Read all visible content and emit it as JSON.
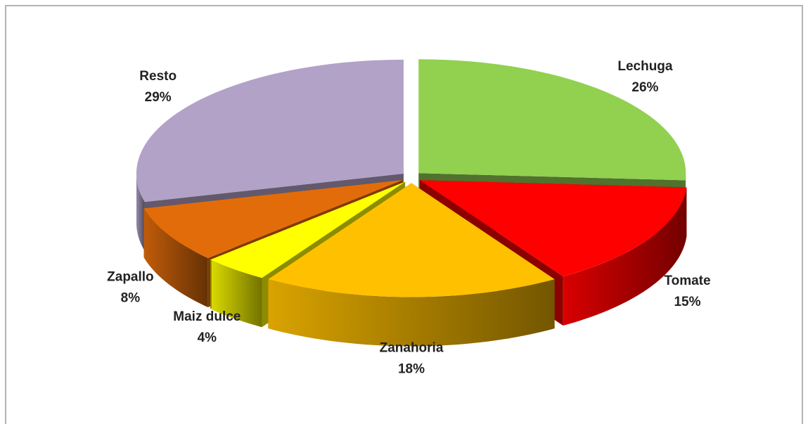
{
  "chart_data": {
    "type": "pie3d",
    "categories": [
      "Lechuga",
      "Tomate",
      "Zanahoria",
      "Maiz dulce",
      "Zapallo",
      "Resto"
    ],
    "values": [
      26,
      15,
      18,
      4,
      8,
      29
    ],
    "value_labels": [
      "26%",
      "15%",
      "18%",
      "4%",
      "8%",
      "29%"
    ],
    "colors": [
      "#92d050",
      "#ff0000",
      "#ffc000",
      "#ffff00",
      "#e36c0a",
      "#b2a2c7"
    ]
  }
}
